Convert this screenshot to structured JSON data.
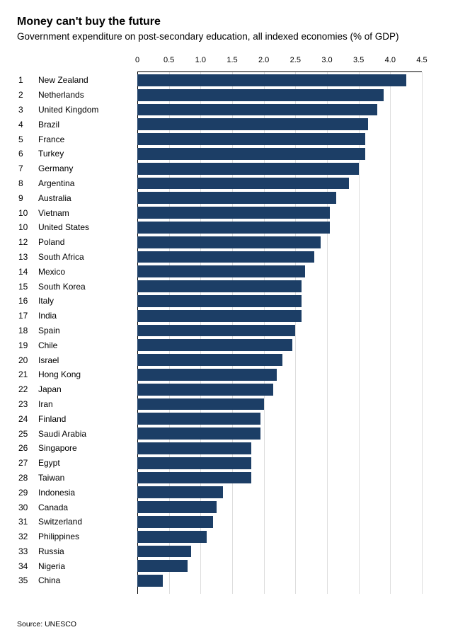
{
  "title": "Money can't buy the future",
  "subtitle": "Government expenditure on post-secondary education, all indexed economies (% of GDP)",
  "source_label": "Source: UNESCO",
  "chart": {
    "type": "bar",
    "orientation": "horizontal",
    "x_min": 0,
    "x_max": 4.5,
    "x_tick_step": 0.5,
    "x_ticks": [
      "0",
      "0.5",
      "1.0",
      "1.5",
      "2.0",
      "2.5",
      "3.0",
      "3.5",
      "4.0",
      "4.5"
    ],
    "bar_color": "#1c3e66",
    "grid_color": "#dddddd",
    "axis_color": "#000000",
    "background_color": "#ffffff",
    "label_fontsize": 12,
    "tick_fontsize": 11,
    "row_height": 20.8,
    "items": [
      {
        "rank": "1",
        "country": "New Zealand",
        "value": 4.25
      },
      {
        "rank": "2",
        "country": "Netherlands",
        "value": 3.9
      },
      {
        "rank": "3",
        "country": "United Kingdom",
        "value": 3.8
      },
      {
        "rank": "4",
        "country": "Brazil",
        "value": 3.65
      },
      {
        "rank": "5",
        "country": "France",
        "value": 3.6
      },
      {
        "rank": "6",
        "country": "Turkey",
        "value": 3.6
      },
      {
        "rank": "7",
        "country": "Germany",
        "value": 3.5
      },
      {
        "rank": "8",
        "country": "Argentina",
        "value": 3.35
      },
      {
        "rank": "9",
        "country": "Australia",
        "value": 3.15
      },
      {
        "rank": "10",
        "country": "Vietnam",
        "value": 3.05
      },
      {
        "rank": "10",
        "country": "United States",
        "value": 3.05
      },
      {
        "rank": "12",
        "country": "Poland",
        "value": 2.9
      },
      {
        "rank": "13",
        "country": "South Africa",
        "value": 2.8
      },
      {
        "rank": "14",
        "country": "Mexico",
        "value": 2.65
      },
      {
        "rank": "15",
        "country": "South Korea",
        "value": 2.6
      },
      {
        "rank": "16",
        "country": "Italy",
        "value": 2.6
      },
      {
        "rank": "17",
        "country": "India",
        "value": 2.6
      },
      {
        "rank": "18",
        "country": "Spain",
        "value": 2.5
      },
      {
        "rank": "19",
        "country": "Chile",
        "value": 2.45
      },
      {
        "rank": "20",
        "country": "Israel",
        "value": 2.3
      },
      {
        "rank": "21",
        "country": "Hong Kong",
        "value": 2.2
      },
      {
        "rank": "22",
        "country": "Japan",
        "value": 2.15
      },
      {
        "rank": "23",
        "country": "Iran",
        "value": 2.0
      },
      {
        "rank": "24",
        "country": "Finland",
        "value": 1.95
      },
      {
        "rank": "25",
        "country": "Saudi Arabia",
        "value": 1.95
      },
      {
        "rank": "26",
        "country": "Singapore",
        "value": 1.8
      },
      {
        "rank": "27",
        "country": "Egypt",
        "value": 1.8
      },
      {
        "rank": "28",
        "country": "Taiwan",
        "value": 1.8
      },
      {
        "rank": "29",
        "country": "Indonesia",
        "value": 1.35
      },
      {
        "rank": "30",
        "country": "Canada",
        "value": 1.25
      },
      {
        "rank": "31",
        "country": "Switzerland",
        "value": 1.2
      },
      {
        "rank": "32",
        "country": "Philippines",
        "value": 1.1
      },
      {
        "rank": "33",
        "country": "Russia",
        "value": 0.85
      },
      {
        "rank": "34",
        "country": "Nigeria",
        "value": 0.8
      },
      {
        "rank": "35",
        "country": "China",
        "value": 0.4
      }
    ]
  }
}
